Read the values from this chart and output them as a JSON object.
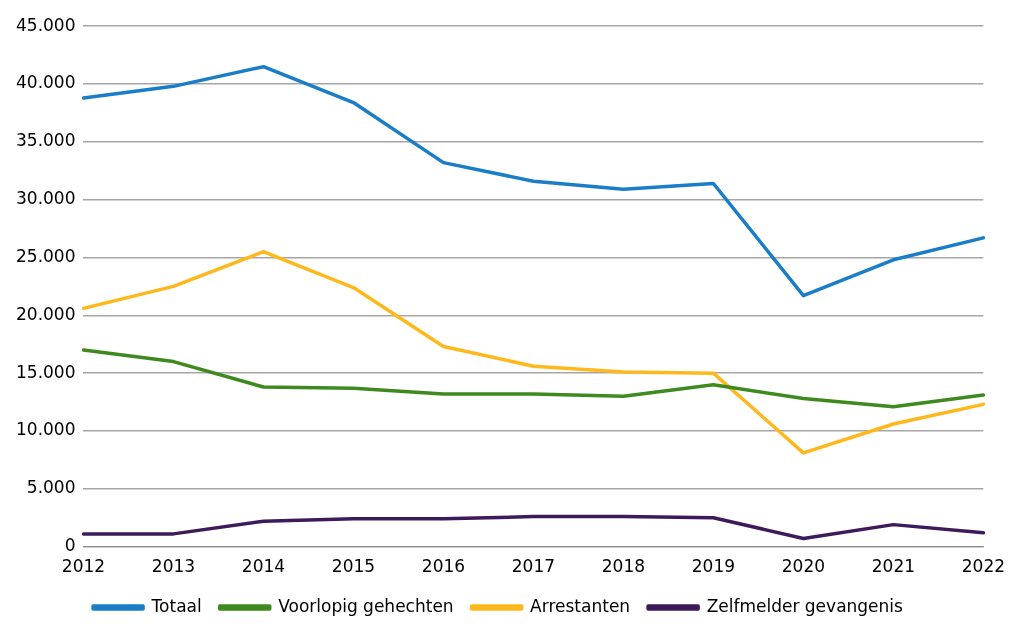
{
  "chart_data": {
    "type": "line",
    "categories": [
      "2012",
      "2013",
      "2014",
      "2015",
      "2016",
      "2017",
      "2018",
      "2019",
      "2020",
      "2021",
      "2022"
    ],
    "series": [
      {
        "name": "Totaal",
        "color": "#1a7dc8",
        "values": [
          38800,
          39800,
          41500,
          38400,
          33200,
          31600,
          30900,
          31400,
          21700,
          24800,
          26700
        ]
      },
      {
        "name": "Voorlopig gehechten",
        "color": "#3e8a1e",
        "values": [
          17000,
          16000,
          13800,
          13700,
          13200,
          13200,
          13000,
          14000,
          12800,
          12100,
          13100
        ]
      },
      {
        "name": "Arrestanten",
        "color": "#ffb81c",
        "values": [
          20600,
          22500,
          25500,
          22400,
          17300,
          15600,
          15100,
          15000,
          8100,
          10600,
          12300
        ]
      },
      {
        "name": "Zelfmelder gevangenis",
        "color": "#3f1a5a",
        "values": [
          1100,
          1100,
          2200,
          2400,
          2400,
          2600,
          2600,
          2500,
          700,
          1900,
          1200
        ]
      }
    ],
    "ylim": [
      0,
      45000
    ],
    "yticks": [
      {
        "value": 0,
        "label": "0"
      },
      {
        "value": 5000,
        "label": "5.000"
      },
      {
        "value": 10000,
        "label": "10.000"
      },
      {
        "value": 15000,
        "label": "15.000"
      },
      {
        "value": 20000,
        "label": "20.000"
      },
      {
        "value": 25000,
        "label": "25.000"
      },
      {
        "value": 30000,
        "label": "30.000"
      },
      {
        "value": 35000,
        "label": "35.000"
      },
      {
        "value": 40000,
        "label": "40.000"
      },
      {
        "value": 45000,
        "label": "45.000"
      }
    ],
    "grid": "y",
    "legend": "bottom",
    "marker": "none",
    "line_style": "solid"
  }
}
